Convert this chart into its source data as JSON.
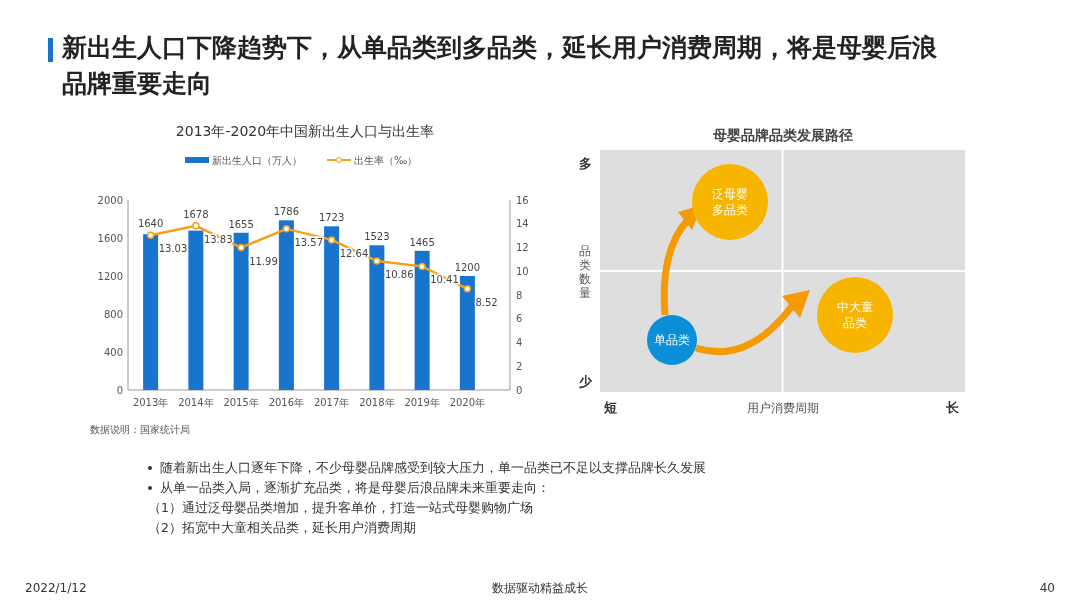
{
  "chart_data": [
    {
      "type": "other",
      "title": "新出生人口下降趋势下，从单品类到多品类，延长用户消费周期，将是母婴后浪品牌重要走向",
      "annotations": [
        "随着新出生人口逐年下降，不少母婴品牌感受到较大压力，单一品类已不足以支撑品牌长久发展",
        "从单一品类入局，逐渐扩充品类，将是母婴后浪品牌未来重要走向：",
        "（1）通过泛母婴品类增加，提升客单价，打造一站式母婴购物广场",
        "（2）拓宽中大童相关品类，延长用户消费周期",
        "2022/1/12",
        "数据驱动精益成长",
        "40"
      ]
    },
    {
      "type": "bar",
      "title": "2013年-2020年中国新出生人口与出生率",
      "categories": [
        "2013年",
        "2014年",
        "2015年",
        "2016年",
        "2017年",
        "2018年",
        "2019年",
        "2020年"
      ],
      "series": [
        {
          "name": "新出生人口（万人）",
          "color": "#1874cd",
          "values": [
            1640,
            1678,
            1655,
            1786,
            1723,
            1523,
            1465,
            1200
          ]
        },
        {
          "name": "出生率（‰）",
          "type": "line",
          "axis": "y2",
          "color": "#f5a01a",
          "values": [
            13.03,
            13.83,
            11.99,
            13.57,
            12.64,
            10.86,
            10.41,
            8.52
          ]
        }
      ],
      "ylim": [
        0,
        2000
      ],
      "yticks": [
        0,
        400,
        800,
        1200,
        1600,
        2000
      ],
      "y2lim": [
        0,
        16
      ],
      "y2ticks": [
        0,
        2,
        4,
        6,
        8,
        10,
        12,
        14,
        16
      ],
      "data_labels": true,
      "legend": "top",
      "marker": "circle",
      "annotations": [
        "数据说明：国家统计局"
      ]
    },
    {
      "type": "other",
      "title": "母婴品牌品类发展路径",
      "xlabel": "用户消费周期",
      "ylabel": "品类数量",
      "annotations": [
        "多",
        "少",
        "短",
        "长",
        "泛母婴多品类",
        "单品类",
        "中大童品类"
      ]
    }
  ]
}
